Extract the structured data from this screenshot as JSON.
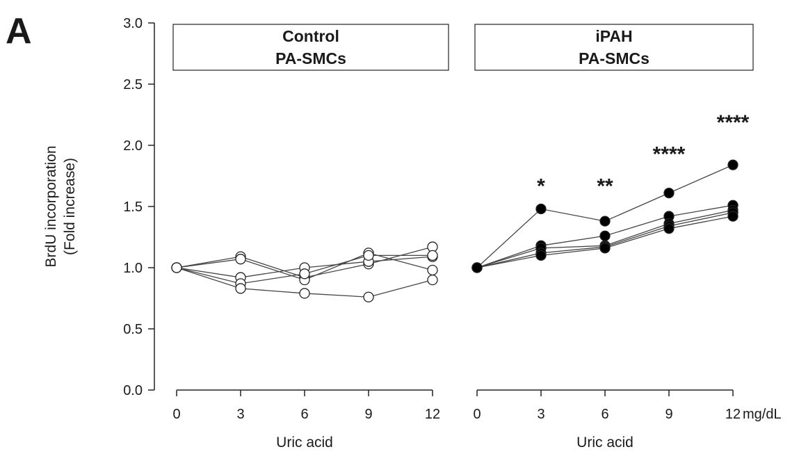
{
  "figure": {
    "panel_letter": "A",
    "ylabel_line1": "BrdU incorporation",
    "ylabel_line2": "(Fold increase)",
    "unit": "mg/dL"
  },
  "chart_data": [
    {
      "type": "line",
      "title_line1": "Control",
      "title_line2": "PA-SMCs",
      "xlabel": "Uric acid",
      "ylabel": "BrdU incorporation (Fold increase)",
      "x": [
        0,
        3,
        6,
        9,
        12
      ],
      "ylim": [
        0.0,
        3.0
      ],
      "yticks": [
        0.0,
        0.5,
        1.0,
        1.5,
        2.0,
        2.5,
        3.0
      ],
      "marker": "open-circle",
      "series": [
        {
          "values": [
            1.0,
            1.09,
            0.92,
            1.03,
            1.17
          ]
        },
        {
          "values": [
            1.0,
            1.07,
            0.9,
            1.12,
            0.98
          ]
        },
        {
          "values": [
            1.0,
            0.92,
            1.0,
            1.05,
            1.09
          ]
        },
        {
          "values": [
            1.0,
            0.87,
            0.95,
            1.1,
            1.1
          ]
        },
        {
          "values": [
            1.0,
            0.83,
            0.79,
            0.76,
            0.9
          ]
        }
      ],
      "annotations": []
    },
    {
      "type": "line",
      "title_line1": "iPAH",
      "title_line2": "PA-SMCs",
      "xlabel": "Uric acid",
      "ylabel": "BrdU incorporation (Fold increase)",
      "x": [
        0,
        3,
        6,
        9,
        12
      ],
      "x_unit_label": "mg/dL",
      "ylim": [
        0.0,
        3.0
      ],
      "marker": "filled-circle",
      "series": [
        {
          "values": [
            1.0,
            1.48,
            1.38,
            1.61,
            1.84
          ]
        },
        {
          "values": [
            1.0,
            1.18,
            1.26,
            1.42,
            1.51
          ]
        },
        {
          "values": [
            1.0,
            1.16,
            1.18,
            1.36,
            1.47
          ]
        },
        {
          "values": [
            1.0,
            1.12,
            1.17,
            1.34,
            1.45
          ]
        },
        {
          "values": [
            1.0,
            1.1,
            1.16,
            1.32,
            1.42
          ]
        }
      ],
      "annotations": [
        {
          "x": 3,
          "y": 1.68,
          "text": "*"
        },
        {
          "x": 6,
          "y": 1.68,
          "text": "**"
        },
        {
          "x": 9,
          "y": 1.94,
          "text": "****"
        },
        {
          "x": 12,
          "y": 2.2,
          "text": "****"
        }
      ]
    }
  ]
}
